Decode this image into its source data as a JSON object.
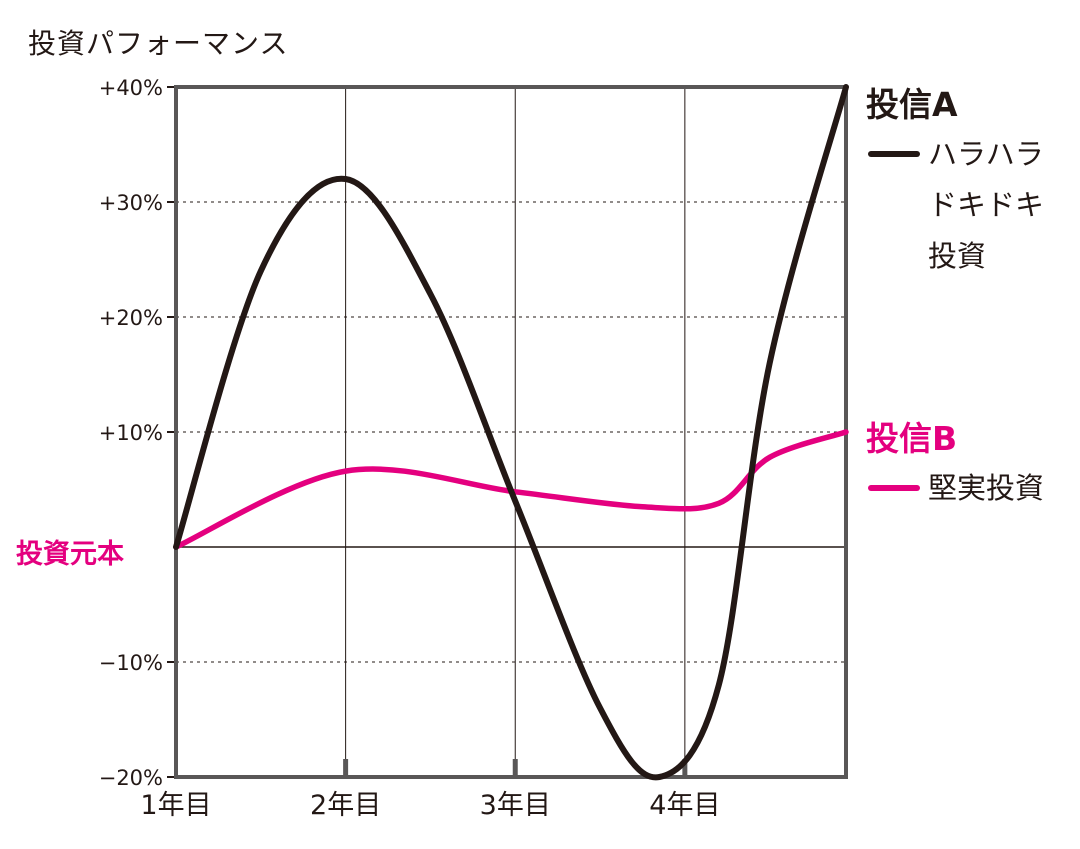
{
  "chart_data": {
    "type": "line",
    "ylabel": "投資パフォーマンス",
    "baseline_label": "投資元本",
    "categories": [
      "1年目",
      "2年目",
      "3年目",
      "4年目"
    ],
    "y_ticks": [
      "+40%",
      "+30%",
      "+20%",
      "+10%",
      "−10%",
      "−20%"
    ],
    "ylim": [
      -20,
      40
    ],
    "grid": "horizontal-dotted",
    "colors": {
      "fund_a": "#231815",
      "fund_b": "#e4007f"
    },
    "series": [
      {
        "name": "投信A",
        "description": "ハラハラ\nドキドキ\n投資",
        "x": [
          1.0,
          1.5,
          2.0,
          2.5,
          3.0,
          3.5,
          3.85,
          4.2,
          4.5,
          4.95
        ],
        "values": [
          0,
          24,
          32,
          22,
          4,
          -14,
          -20,
          -12,
          16,
          40
        ]
      },
      {
        "name": "投信B",
        "description": "堅実投資",
        "x": [
          1.0,
          2.0,
          3.0,
          3.75,
          4.2,
          4.5,
          4.95
        ],
        "values": [
          0,
          6.6,
          4.8,
          3.5,
          3.8,
          7.8,
          10
        ]
      }
    ]
  }
}
